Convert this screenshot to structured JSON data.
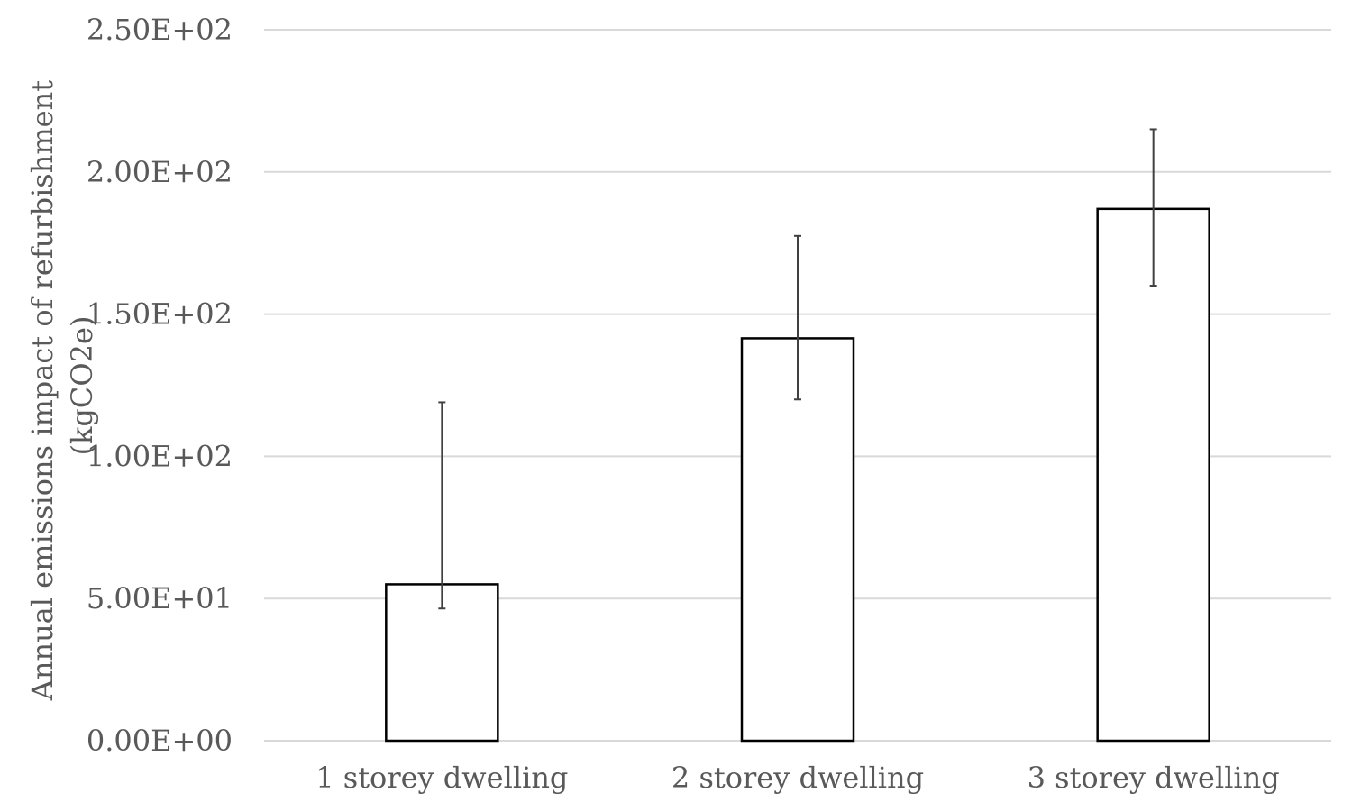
{
  "chart_data": {
    "type": "bar",
    "title": "",
    "xlabel": "",
    "ylabel_lines": [
      "Annual emissions impact of refurbishment",
      "(kgCO2e)"
    ],
    "categories": [
      "1 storey dwelling",
      "2 storey dwelling",
      "3 storey dwelling"
    ],
    "values": [
      55,
      141.5,
      187
    ],
    "error_low": [
      46.5,
      120,
      160
    ],
    "error_high": [
      119,
      177.5,
      215
    ],
    "ylim": [
      0,
      250
    ],
    "yticks": [
      0,
      50,
      100,
      150,
      200,
      250
    ],
    "ytick_labels": [
      "0.00E+00",
      "5.00E+01",
      "1.00E+02",
      "1.50E+02",
      "2.00E+02",
      "2.50E+02"
    ],
    "grid": true,
    "legend": "none",
    "colors": {
      "bar_fill": "#ffffff",
      "bar_stroke": "#000000",
      "grid": "#d9d9d9",
      "text": "#595959",
      "error_bar": "#404040"
    }
  }
}
